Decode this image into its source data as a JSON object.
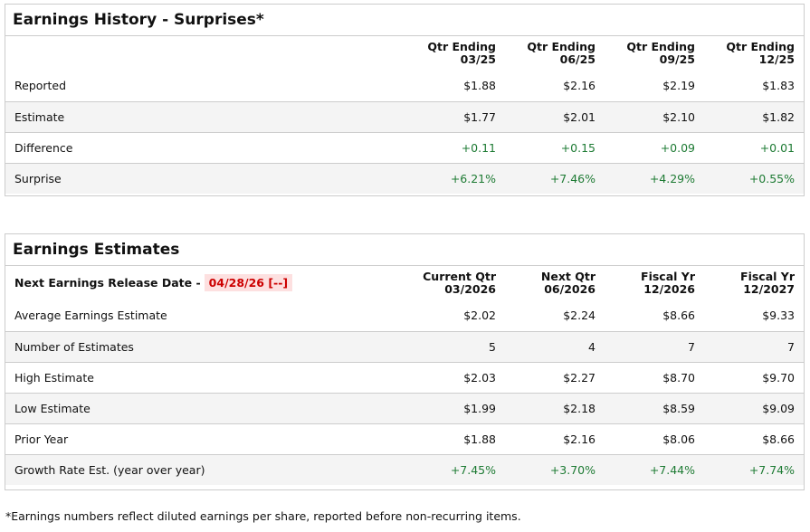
{
  "history": {
    "title": "Earnings History - Surprises*",
    "headers": [
      [
        "Qtr Ending",
        "03/25"
      ],
      [
        "Qtr Ending",
        "06/25"
      ],
      [
        "Qtr Ending",
        "09/25"
      ],
      [
        "Qtr Ending",
        "12/25"
      ]
    ],
    "rows": [
      {
        "label": "Reported",
        "values": [
          "$1.88",
          "$2.16",
          "$2.19",
          "$1.83"
        ],
        "positive": false
      },
      {
        "label": "Estimate",
        "values": [
          "$1.77",
          "$2.01",
          "$2.10",
          "$1.82"
        ],
        "positive": false
      },
      {
        "label": "Difference",
        "values": [
          "+0.11",
          "+0.15",
          "+0.09",
          "+0.01"
        ],
        "positive": true
      },
      {
        "label": "Surprise",
        "values": [
          "+6.21%",
          "+7.46%",
          "+4.29%",
          "+0.55%"
        ],
        "positive": true
      }
    ]
  },
  "estimates": {
    "title": "Earnings Estimates",
    "release_label": "Next Earnings Release Date -",
    "release_date": "04/28/26 [--]",
    "headers": [
      [
        "Current Qtr",
        "03/2026"
      ],
      [
        "Next Qtr",
        "06/2026"
      ],
      [
        "Fiscal Yr",
        "12/2026"
      ],
      [
        "Fiscal Yr",
        "12/2027"
      ]
    ],
    "rows": [
      {
        "label": "Average Earnings Estimate",
        "values": [
          "$2.02",
          "$2.24",
          "$8.66",
          "$9.33"
        ],
        "positive": false
      },
      {
        "label": "Number of Estimates",
        "values": [
          "5",
          "4",
          "7",
          "7"
        ],
        "positive": false
      },
      {
        "label": "High Estimate",
        "values": [
          "$2.03",
          "$2.27",
          "$8.70",
          "$9.70"
        ],
        "positive": false
      },
      {
        "label": "Low Estimate",
        "values": [
          "$1.99",
          "$2.18",
          "$8.59",
          "$9.09"
        ],
        "positive": false
      },
      {
        "label": "Prior Year",
        "values": [
          "$1.88",
          "$2.16",
          "$8.06",
          "$8.66"
        ],
        "positive": false
      },
      {
        "label": "Growth Rate Est. (year over year)",
        "values": [
          "+7.45%",
          "+3.70%",
          "+7.44%",
          "+7.74%"
        ],
        "positive": true
      }
    ]
  },
  "footnote": "*Earnings numbers reflect diluted earnings per share, reported before non-recurring items.",
  "colors": {
    "positive": "#1e7b34",
    "date_text": "#cc0000",
    "date_bg": "#fde0e0"
  }
}
